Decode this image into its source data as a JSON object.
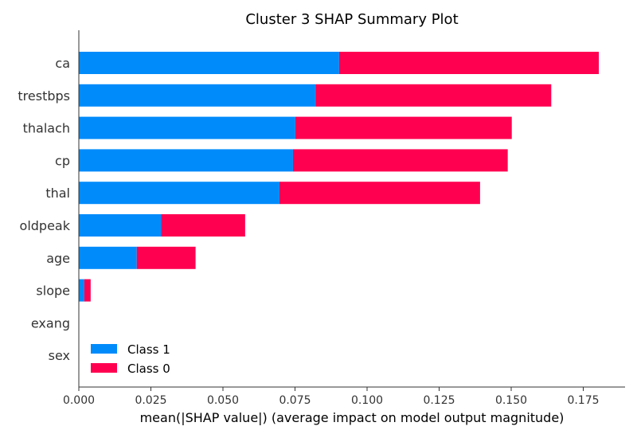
{
  "chart_data": {
    "type": "bar",
    "orientation": "horizontal",
    "stacked": true,
    "title": "Cluster 3 SHAP Summary Plot",
    "xlabel": "mean(|SHAP value|) (average impact on model output magnitude)",
    "ylabel": "",
    "xlim": [
      0,
      0.19
    ],
    "x_ticks": [
      "0.000",
      "0.025",
      "0.050",
      "0.075",
      "0.100",
      "0.125",
      "0.150",
      "0.175"
    ],
    "x_tick_values": [
      0,
      0.025,
      0.05,
      0.075,
      0.1,
      0.125,
      0.15,
      0.175
    ],
    "categories": [
      "ca",
      "trestbps",
      "thalach",
      "cp",
      "thal",
      "oldpeak",
      "age",
      "slope",
      "exang",
      "sex"
    ],
    "series": [
      {
        "name": "Class 1",
        "color": "#008bfb",
        "values": [
          0.0903,
          0.0821,
          0.0751,
          0.0743,
          0.0696,
          0.0286,
          0.0201,
          0.0019,
          0.0,
          0.0
        ]
      },
      {
        "name": "Class 0",
        "color": "#ff0051",
        "values": [
          0.0901,
          0.0818,
          0.0751,
          0.0745,
          0.0696,
          0.0291,
          0.0204,
          0.0022,
          0.0,
          0.0
        ]
      }
    ],
    "grid": false,
    "legend": "lower-left"
  }
}
